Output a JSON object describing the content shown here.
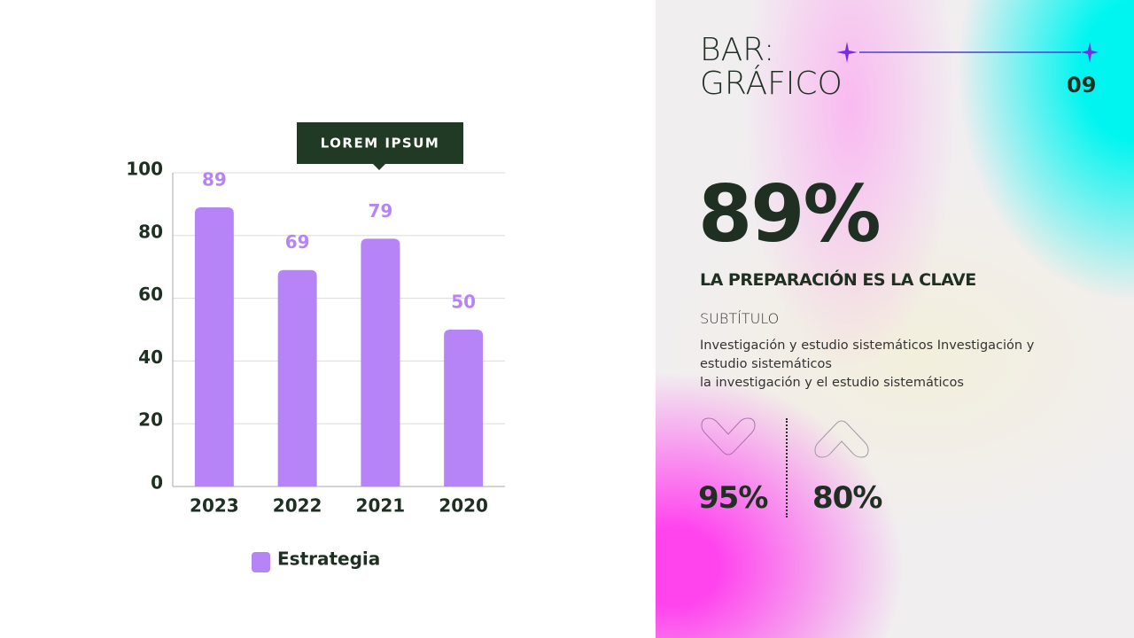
{
  "chart_data": {
    "type": "bar",
    "annotation": "LOREM IPSUM",
    "categories": [
      "2023",
      "2022",
      "2021",
      "2020"
    ],
    "series": [
      {
        "name": "Estrategia",
        "color": "#b784f7",
        "values": [
          89,
          69,
          79,
          50
        ]
      }
    ],
    "ylim": [
      0,
      100
    ],
    "yticks": [
      0,
      20,
      40,
      60,
      80,
      100
    ],
    "grid": true,
    "value_labels_shown": true,
    "legend": "bottom"
  },
  "header": {
    "title_lines": [
      "BAR:",
      "GRÁFICO"
    ],
    "page_number": "09"
  },
  "highlight": {
    "figure": "89%",
    "heading": "LA PREPARACIÓN ES LA CLAVE",
    "subtitle": "SUBTÍTULO",
    "body_lines": [
      "Investigación y estudio sistemáticos Investigación y",
      "estudio sistemáticos",
      "la investigación y el estudio sistemáticos"
    ]
  },
  "stats": [
    {
      "direction": "down",
      "figure": "95%"
    },
    {
      "direction": "up",
      "figure": "80%"
    }
  ]
}
